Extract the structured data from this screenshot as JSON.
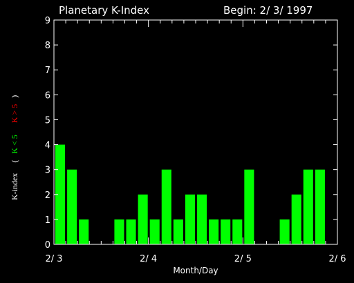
{
  "chart_data": {
    "type": "bar",
    "title": "Planetary K-Index",
    "begin_label": "Begin: 2/ 3/ 1997",
    "xlabel": "Month/Day",
    "ylabel": {
      "main": "K-index",
      "open": "(",
      "low": "K < 5",
      "high": "K > 5",
      "close": ")"
    },
    "ylim": [
      0,
      9
    ],
    "yticks": [
      "0",
      "1",
      "2",
      "3",
      "4",
      "5",
      "6",
      "7",
      "8",
      "9"
    ],
    "x_range_days": [
      0,
      3
    ],
    "x_ticks": [
      {
        "day": 0,
        "label": "2/ 3"
      },
      {
        "day": 1,
        "label": "2/ 4"
      },
      {
        "day": 2,
        "label": "2/ 5"
      },
      {
        "day": 3,
        "label": "2/ 6"
      }
    ],
    "interval_hours": 3,
    "values": [
      4,
      3,
      1,
      0,
      0,
      1,
      1,
      2,
      1,
      3,
      1,
      2,
      2,
      1,
      1,
      1,
      3,
      0,
      0,
      1,
      2,
      3,
      3,
      0
    ],
    "colors": {
      "low": "#00ff00",
      "high": "#ff0000",
      "axis": "#ffffff",
      "background": "#000000"
    }
  }
}
